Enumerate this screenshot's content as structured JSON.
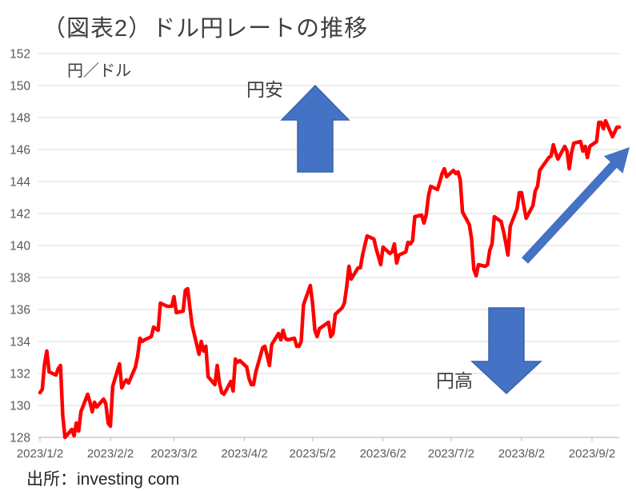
{
  "header": {
    "title": "（図表2）ドル円レートの推移"
  },
  "axes": {
    "y_unit": "円／ドル"
  },
  "annotations": {
    "yen_weak": "円安",
    "yen_strong": "円高"
  },
  "footer": {
    "source": "出所：investing com"
  },
  "colors": {
    "line": "#ff0000",
    "arrow_fill": "#4472c4",
    "arrow_stroke": "#3a62ac",
    "grid": "#d9d9d9",
    "axis": "#bfbfbf",
    "tick_text": "#595959"
  },
  "chart_data": {
    "type": "line",
    "title": "（図表2）ドル円レートの推移",
    "ylabel": "円／ドル",
    "xlabel": "",
    "ylim": [
      128,
      152
    ],
    "grid": "horizontal",
    "legend": "none",
    "y_ticks": [
      152,
      150,
      148,
      146,
      144,
      142,
      140,
      138,
      136,
      134,
      132,
      130,
      128
    ],
    "x_tick_labels": [
      "2023/1/2",
      "2023/2/2",
      "2023/3/2",
      "2023/4/2",
      "2023/5/2",
      "2023/6/2",
      "2023/7/2",
      "2023/8/2",
      "2023/9/2"
    ],
    "x_tick_day_offsets": [
      0,
      31,
      59,
      90,
      120,
      151,
      181,
      212,
      243
    ],
    "series": [
      {
        "color": "#ff0000",
        "points": [
          [
            0,
            130.8
          ],
          [
            1,
            131.0
          ],
          [
            2,
            132.6
          ],
          [
            3,
            133.4
          ],
          [
            4,
            132.1
          ],
          [
            7,
            131.9
          ],
          [
            8,
            132.3
          ],
          [
            9,
            132.5
          ],
          [
            10,
            129.4
          ],
          [
            11,
            128.0
          ],
          [
            14,
            128.5
          ],
          [
            15,
            128.1
          ],
          [
            16,
            128.9
          ],
          [
            17,
            128.4
          ],
          [
            18,
            129.6
          ],
          [
            21,
            130.7
          ],
          [
            22,
            130.2
          ],
          [
            23,
            129.6
          ],
          [
            24,
            130.2
          ],
          [
            25,
            129.9
          ],
          [
            28,
            130.4
          ],
          [
            29,
            130.1
          ],
          [
            30,
            128.9
          ],
          [
            31,
            128.7
          ],
          [
            32,
            131.2
          ],
          [
            35,
            132.6
          ],
          [
            36,
            131.1
          ],
          [
            37,
            131.4
          ],
          [
            38,
            131.6
          ],
          [
            39,
            131.4
          ],
          [
            42,
            132.4
          ],
          [
            43,
            133.1
          ],
          [
            44,
            134.2
          ],
          [
            45,
            134.0
          ],
          [
            46,
            134.1
          ],
          [
            49,
            134.3
          ],
          [
            50,
            134.9
          ],
          [
            51,
            134.8
          ],
          [
            52,
            134.7
          ],
          [
            53,
            136.4
          ],
          [
            56,
            136.2
          ],
          [
            57,
            136.2
          ],
          [
            58,
            136.2
          ],
          [
            59,
            136.8
          ],
          [
            60,
            135.8
          ],
          [
            63,
            135.9
          ],
          [
            64,
            137.2
          ],
          [
            65,
            137.3
          ],
          [
            66,
            136.1
          ],
          [
            67,
            135.0
          ],
          [
            70,
            133.2
          ],
          [
            71,
            134.0
          ],
          [
            72,
            133.4
          ],
          [
            73,
            133.7
          ],
          [
            74,
            131.8
          ],
          [
            77,
            131.3
          ],
          [
            78,
            132.5
          ],
          [
            79,
            131.4
          ],
          [
            80,
            130.8
          ],
          [
            81,
            130.7
          ],
          [
            84,
            131.5
          ],
          [
            85,
            130.9
          ],
          [
            86,
            132.9
          ],
          [
            87,
            132.7
          ],
          [
            88,
            132.8
          ],
          [
            91,
            132.4
          ],
          [
            92,
            131.7
          ],
          [
            93,
            131.3
          ],
          [
            94,
            131.3
          ],
          [
            95,
            132.1
          ],
          [
            98,
            133.6
          ],
          [
            99,
            133.7
          ],
          [
            100,
            133.1
          ],
          [
            101,
            132.5
          ],
          [
            102,
            133.8
          ],
          [
            105,
            134.5
          ],
          [
            106,
            134.1
          ],
          [
            107,
            134.7
          ],
          [
            108,
            134.2
          ],
          [
            109,
            134.1
          ],
          [
            112,
            134.2
          ],
          [
            113,
            133.7
          ],
          [
            114,
            133.7
          ],
          [
            115,
            134.0
          ],
          [
            116,
            136.3
          ],
          [
            119,
            137.5
          ],
          [
            120,
            136.4
          ],
          [
            121,
            134.7
          ],
          [
            122,
            134.3
          ],
          [
            123,
            134.8
          ],
          [
            126,
            135.1
          ],
          [
            127,
            135.2
          ],
          [
            128,
            134.3
          ],
          [
            129,
            134.5
          ],
          [
            130,
            135.7
          ],
          [
            133,
            136.1
          ],
          [
            134,
            136.4
          ],
          [
            135,
            137.4
          ],
          [
            136,
            138.7
          ],
          [
            137,
            137.9
          ],
          [
            140,
            138.6
          ],
          [
            141,
            138.6
          ],
          [
            142,
            139.4
          ],
          [
            143,
            140.0
          ],
          [
            144,
            140.6
          ],
          [
            147,
            140.4
          ],
          [
            148,
            139.8
          ],
          [
            149,
            139.3
          ],
          [
            150,
            138.8
          ],
          [
            151,
            139.9
          ],
          [
            154,
            139.5
          ],
          [
            155,
            139.6
          ],
          [
            156,
            140.1
          ],
          [
            157,
            138.9
          ],
          [
            158,
            139.4
          ],
          [
            161,
            139.6
          ],
          [
            162,
            140.2
          ],
          [
            163,
            140.1
          ],
          [
            164,
            140.3
          ],
          [
            165,
            141.8
          ],
          [
            168,
            141.9
          ],
          [
            169,
            141.4
          ],
          [
            170,
            141.9
          ],
          [
            171,
            143.1
          ],
          [
            172,
            143.7
          ],
          [
            175,
            143.5
          ],
          [
            176,
            144.0
          ],
          [
            177,
            144.5
          ],
          [
            178,
            144.8
          ],
          [
            179,
            144.3
          ],
          [
            182,
            144.7
          ],
          [
            183,
            144.5
          ],
          [
            184,
            144.6
          ],
          [
            185,
            144.1
          ],
          [
            186,
            142.1
          ],
          [
            189,
            141.3
          ],
          [
            190,
            140.4
          ],
          [
            191,
            138.5
          ],
          [
            192,
            138.1
          ],
          [
            193,
            138.8
          ],
          [
            196,
            138.7
          ],
          [
            197,
            138.8
          ],
          [
            198,
            139.7
          ],
          [
            199,
            140.1
          ],
          [
            200,
            141.8
          ],
          [
            203,
            141.5
          ],
          [
            204,
            140.9
          ],
          [
            205,
            140.2
          ],
          [
            206,
            139.4
          ],
          [
            207,
            141.2
          ],
          [
            210,
            142.3
          ],
          [
            211,
            143.3
          ],
          [
            212,
            143.3
          ],
          [
            213,
            142.5
          ],
          [
            214,
            141.7
          ],
          [
            217,
            142.5
          ],
          [
            218,
            143.4
          ],
          [
            219,
            143.7
          ],
          [
            220,
            144.7
          ],
          [
            221,
            144.9
          ],
          [
            224,
            145.5
          ],
          [
            225,
            145.6
          ],
          [
            226,
            146.3
          ],
          [
            227,
            145.8
          ],
          [
            228,
            145.4
          ],
          [
            231,
            146.2
          ],
          [
            232,
            145.9
          ],
          [
            233,
            144.8
          ],
          [
            234,
            145.8
          ],
          [
            235,
            146.4
          ],
          [
            238,
            146.5
          ],
          [
            239,
            145.9
          ],
          [
            240,
            146.2
          ],
          [
            241,
            145.5
          ],
          [
            242,
            146.2
          ],
          [
            245,
            146.5
          ],
          [
            246,
            147.7
          ],
          [
            247,
            147.7
          ],
          [
            248,
            147.3
          ],
          [
            249,
            147.8
          ],
          [
            252,
            146.8
          ],
          [
            253,
            147.1
          ],
          [
            254,
            147.4
          ],
          [
            255,
            147.4
          ]
        ]
      }
    ]
  }
}
